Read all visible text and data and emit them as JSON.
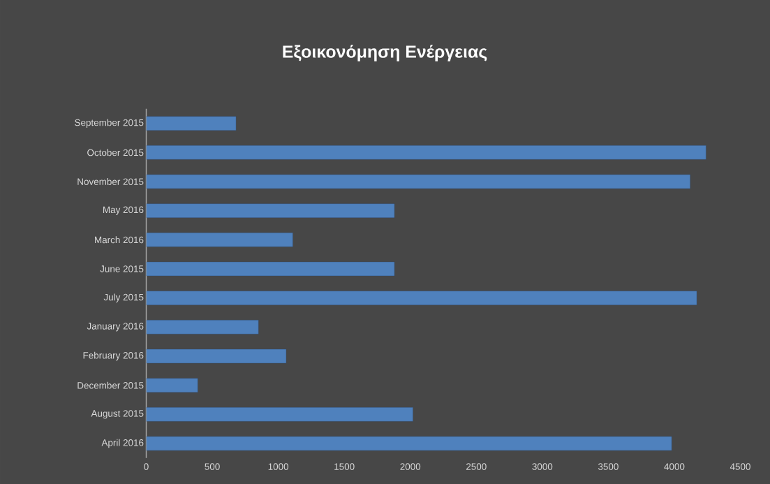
{
  "chart_data": {
    "type": "bar",
    "orientation": "horizontal",
    "title": "Εξοικονόμηση Ενέργειας",
    "categories": [
      "September 2015",
      "October 2015",
      "November 2015",
      "May 2016",
      "March 2016",
      "June 2015",
      "July 2015",
      "January 2016",
      "February 2016",
      "December 2015",
      "August 2015",
      "April 2016"
    ],
    "values": [
      680,
      4240,
      4120,
      1880,
      1110,
      1880,
      4170,
      850,
      1060,
      390,
      2020,
      3980
    ],
    "color": "#4f81bd",
    "xlim": [
      0,
      4500
    ],
    "xticks": [
      0,
      500,
      1000,
      1500,
      2000,
      2500,
      3000,
      3500,
      4000,
      4500
    ]
  }
}
